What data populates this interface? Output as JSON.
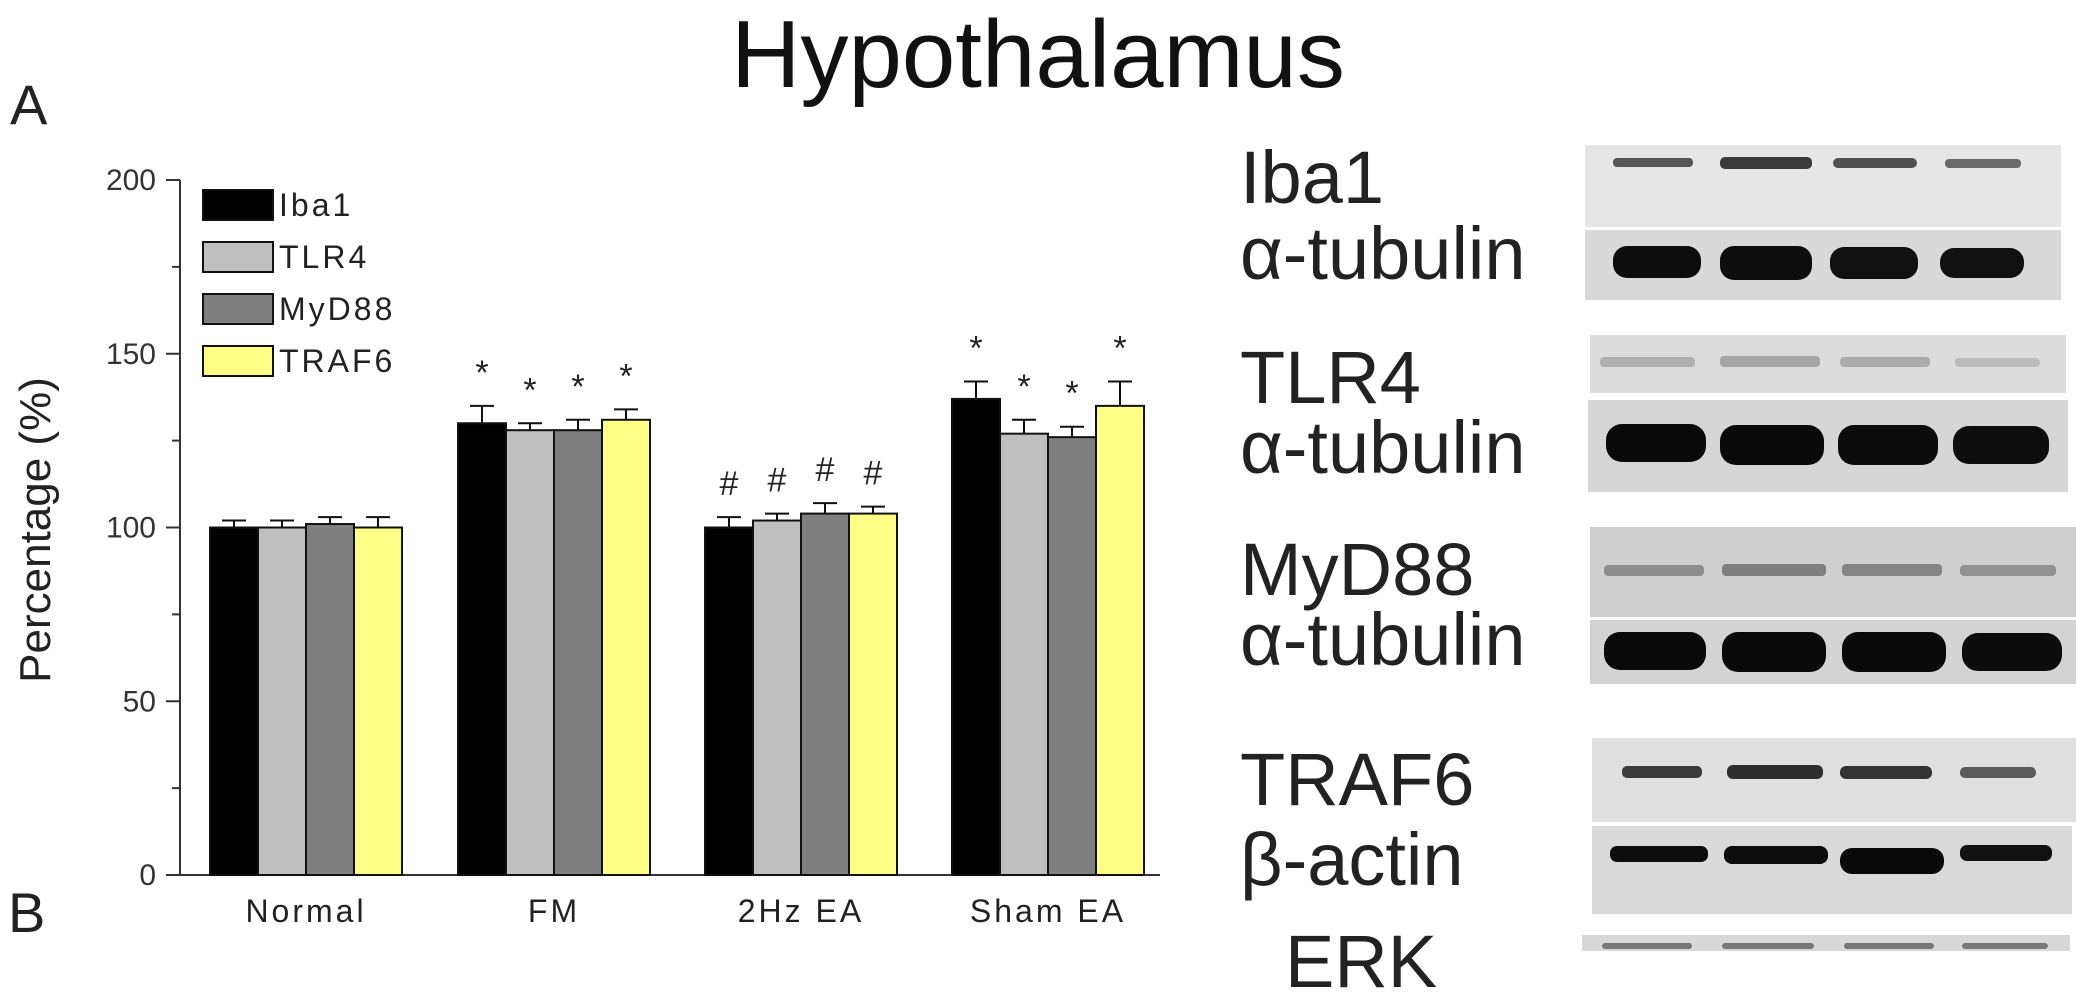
{
  "figure": {
    "title": "Hypothalamus",
    "panel_a": "A",
    "panel_b": "B"
  },
  "chart_data": {
    "type": "bar",
    "categories": [
      "Normal",
      "FM",
      "2Hz EA",
      "Sham EA"
    ],
    "series": [
      {
        "name": "Iba1",
        "color": "#000000",
        "values": [
          100,
          130,
          100,
          137
        ],
        "errors": [
          2,
          5,
          3,
          5
        ],
        "marks": [
          "",
          "*",
          "#",
          "*"
        ]
      },
      {
        "name": "TLR4",
        "color": "#c0c0c0",
        "values": [
          100,
          128,
          102,
          127
        ],
        "errors": [
          2,
          2,
          2,
          4
        ],
        "marks": [
          "",
          "*",
          "#",
          "*"
        ]
      },
      {
        "name": "MyD88",
        "color": "#7f7f7f",
        "values": [
          101,
          128,
          104,
          126
        ],
        "errors": [
          2,
          3,
          3,
          3
        ],
        "marks": [
          "",
          "*",
          "#",
          "*"
        ]
      },
      {
        "name": "TRAF6",
        "color": "#ffff88",
        "values": [
          100,
          131,
          104,
          135
        ],
        "errors": [
          3,
          3,
          2,
          7
        ],
        "marks": [
          "",
          "*",
          "#",
          "*"
        ]
      }
    ],
    "ylabel": "Percentage (%)",
    "xlabel": "",
    "ylim": [
      0,
      200
    ],
    "yticks": [
      "0",
      "50",
      "100",
      "150",
      "200"
    ],
    "legend_position": "top-left"
  },
  "blots": [
    {
      "target": "Iba1",
      "control": "α-tubulin"
    },
    {
      "target": "TLR4",
      "control": "α-tubulin"
    },
    {
      "target": "MyD88",
      "control": "α-tubulin"
    },
    {
      "target": "TRAF6",
      "control": "β-actin"
    },
    {
      "target": "ERK",
      "control": ""
    }
  ]
}
